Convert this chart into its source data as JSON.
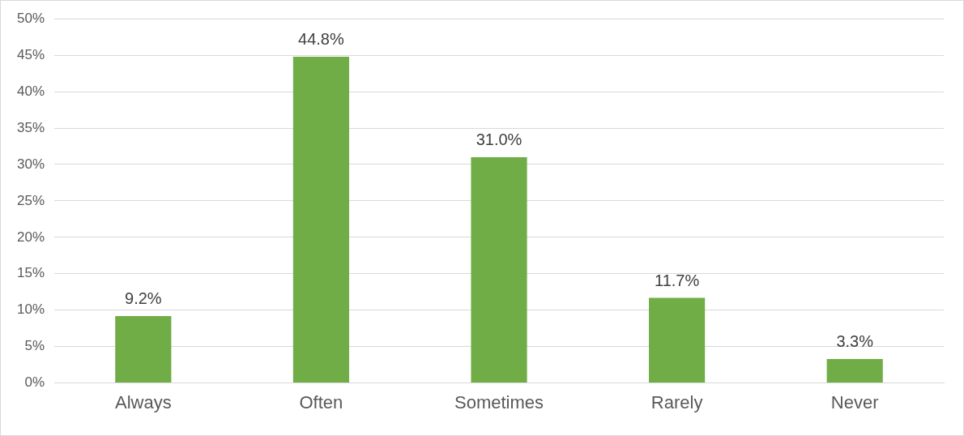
{
  "chart_data": {
    "type": "bar",
    "categories": [
      "Always",
      "Often",
      "Sometimes",
      "Rarely",
      "Never"
    ],
    "values": [
      9.2,
      44.8,
      31.0,
      11.7,
      3.3
    ],
    "value_labels": [
      "9.2%",
      "44.8%",
      "31.0%",
      "11.7%",
      "3.3%"
    ],
    "color": "#70ad47",
    "ylim": [
      0,
      50
    ],
    "yticks": [
      {
        "value": 0,
        "label": "0%"
      },
      {
        "value": 5,
        "label": "5%"
      },
      {
        "value": 10,
        "label": "10%"
      },
      {
        "value": 15,
        "label": "15%"
      },
      {
        "value": 20,
        "label": "20%"
      },
      {
        "value": 25,
        "label": "25%"
      },
      {
        "value": 30,
        "label": "30%"
      },
      {
        "value": 35,
        "label": "35%"
      },
      {
        "value": 40,
        "label": "40%"
      },
      {
        "value": 45,
        "label": "45%"
      },
      {
        "value": 50,
        "label": "50%"
      }
    ],
    "grid": "y"
  }
}
